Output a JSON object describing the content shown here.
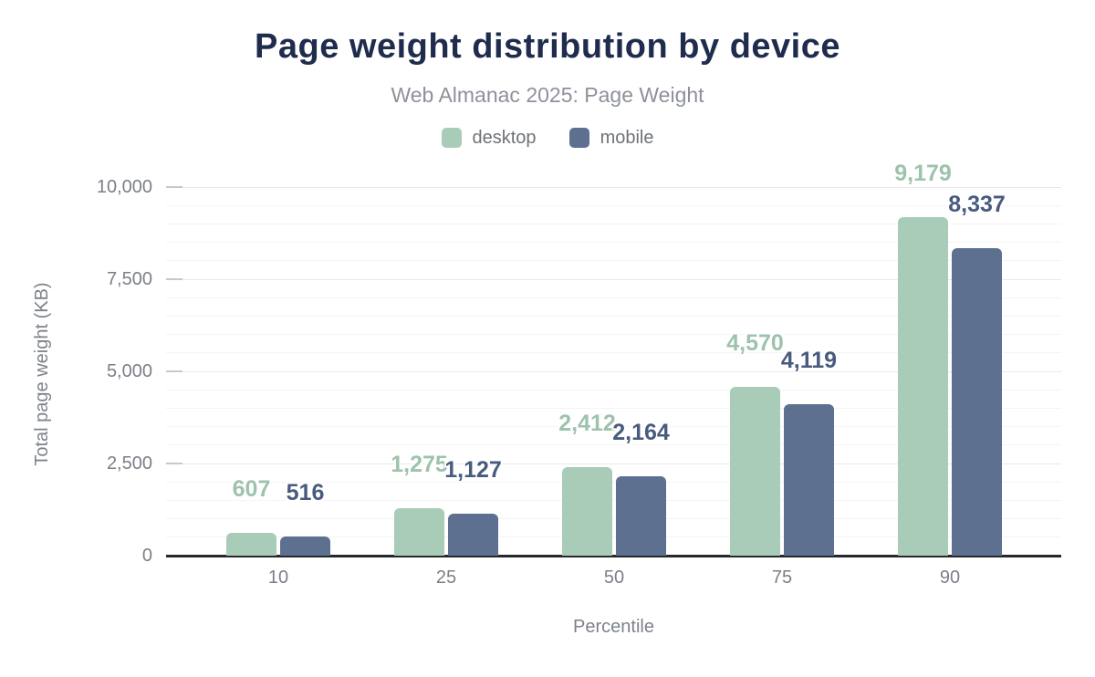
{
  "chart_data": {
    "type": "bar",
    "title": "Page weight distribution by device",
    "subtitle": "Web Almanac 2025: Page Weight",
    "categories": [
      "10",
      "25",
      "50",
      "75",
      "90"
    ],
    "series": [
      {
        "name": "desktop",
        "values": [
          607,
          1275,
          2412,
          4570,
          9179
        ],
        "value_labels": [
          "607",
          "1,275",
          "2,412",
          "4,570",
          "9,179"
        ],
        "color": "#a8ccb8",
        "label_color": "#9dc3ac"
      },
      {
        "name": "mobile",
        "values": [
          516,
          1127,
          2164,
          4119,
          8337
        ],
        "value_labels": [
          "516",
          "1,127",
          "2,164",
          "4,119",
          "8,337"
        ],
        "color": "#5d7090",
        "label_color": "#485b7e"
      }
    ],
    "xlabel": "Percentile",
    "ylabel": "Total page weight (KB)",
    "ylim": [
      0,
      10000
    ],
    "yticks": [
      0,
      2500,
      5000,
      7500,
      10000
    ],
    "ytick_labels": [
      "0",
      "2,500",
      "5,000",
      "7,500",
      "10,000"
    ],
    "grid": "on",
    "grid_minor_step": 500,
    "legend_position": "top",
    "axis_line_color": "#26282c",
    "title_color": "#1f2c4d",
    "subtitle_color": "#8d919a"
  }
}
